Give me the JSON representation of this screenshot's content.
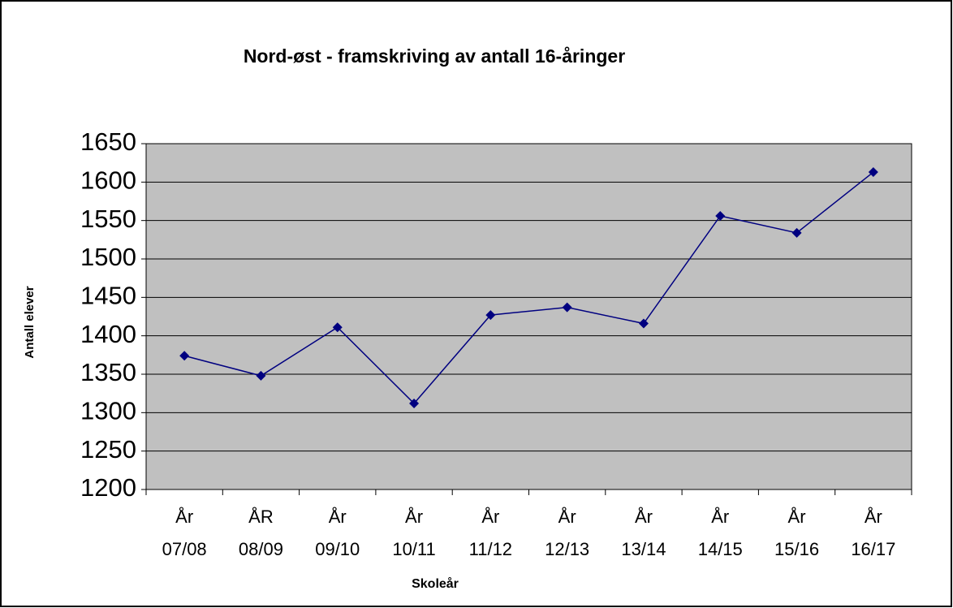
{
  "chart_data": {
    "type": "line",
    "title": "Nord-øst - framskriving av antall 16-åringer",
    "x_label": "Skoleår",
    "y_label": "Antall elever",
    "categories": [
      "År 07/08",
      "ÅR 08/09",
      "År 09/10",
      "År 10/11",
      "År 11/12",
      "År 12/13",
      "År 13/14",
      "År 14/15",
      "År 15/16",
      "År 16/17"
    ],
    "series": [
      {
        "name": "Antall elever",
        "color": "#000080",
        "values": [
          1374,
          1348,
          1411,
          1312,
          1427,
          1437,
          1416,
          1556,
          1534,
          1613
        ]
      }
    ],
    "ylim": [
      1200,
      1650
    ],
    "yticks": [
      1200,
      1250,
      1300,
      1350,
      1400,
      1450,
      1500,
      1550,
      1600,
      1650
    ],
    "grid": true,
    "plot_background": "#c0c0c0"
  }
}
